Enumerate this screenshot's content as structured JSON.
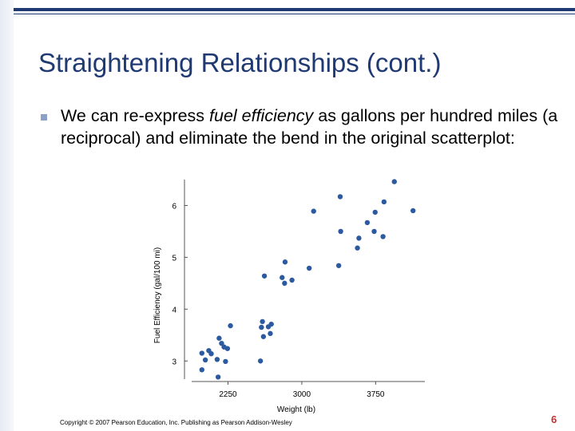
{
  "slide": {
    "title": "Straightening Relationships (cont.)",
    "bullet": {
      "prefix": "We can re-express ",
      "emphasis": "fuel efficiency",
      "suffix": " as gallons per hundred miles (a reciprocal) and eliminate the bend in the original scatterplot:"
    },
    "footer": "Copyright © 2007 Pearson Education, Inc. Publishing as Pearson Addison-Wesley",
    "page_number": "6"
  },
  "colors": {
    "title": "#1f3a73",
    "rule": "#1f3a73",
    "bullet": "#8aa0c5",
    "points": "#2c5aa0",
    "page_number": "#c03030"
  },
  "chart_data": {
    "type": "scatter",
    "title": "",
    "xlabel": "Weight (lb)",
    "ylabel": "Fuel Efficiency (gal/100 mi)",
    "xlim": [
      1800,
      4250
    ],
    "ylim": [
      2.65,
      6.5
    ],
    "xticks": [
      2250,
      3000,
      3750
    ],
    "yticks": [
      3,
      4,
      5,
      6
    ],
    "grid": false,
    "points": [
      {
        "x": 1985,
        "y": 2.83
      },
      {
        "x": 1985,
        "y": 3.15
      },
      {
        "x": 2020,
        "y": 3.02
      },
      {
        "x": 2055,
        "y": 3.2
      },
      {
        "x": 2080,
        "y": 3.14
      },
      {
        "x": 2140,
        "y": 3.03
      },
      {
        "x": 2150,
        "y": 2.69
      },
      {
        "x": 2160,
        "y": 3.44
      },
      {
        "x": 2185,
        "y": 3.34
      },
      {
        "x": 2210,
        "y": 3.27
      },
      {
        "x": 2225,
        "y": 2.99
      },
      {
        "x": 2245,
        "y": 3.24
      },
      {
        "x": 2275,
        "y": 3.68
      },
      {
        "x": 2580,
        "y": 3.0
      },
      {
        "x": 2590,
        "y": 3.65
      },
      {
        "x": 2600,
        "y": 3.76
      },
      {
        "x": 2610,
        "y": 3.47
      },
      {
        "x": 2620,
        "y": 4.64
      },
      {
        "x": 2660,
        "y": 3.66
      },
      {
        "x": 2680,
        "y": 3.53
      },
      {
        "x": 2690,
        "y": 3.71
      },
      {
        "x": 2800,
        "y": 4.61
      },
      {
        "x": 2825,
        "y": 4.5
      },
      {
        "x": 2830,
        "y": 4.91
      },
      {
        "x": 2900,
        "y": 4.56
      },
      {
        "x": 3075,
        "y": 4.79
      },
      {
        "x": 3120,
        "y": 5.89
      },
      {
        "x": 3375,
        "y": 4.84
      },
      {
        "x": 3390,
        "y": 6.17
      },
      {
        "x": 3395,
        "y": 5.5
      },
      {
        "x": 3565,
        "y": 5.18
      },
      {
        "x": 3580,
        "y": 5.37
      },
      {
        "x": 3665,
        "y": 5.67
      },
      {
        "x": 3745,
        "y": 5.87
      },
      {
        "x": 3735,
        "y": 5.5
      },
      {
        "x": 3825,
        "y": 5.4
      },
      {
        "x": 3835,
        "y": 6.07
      },
      {
        "x": 3940,
        "y": 6.46
      },
      {
        "x": 4130,
        "y": 5.9
      }
    ]
  }
}
